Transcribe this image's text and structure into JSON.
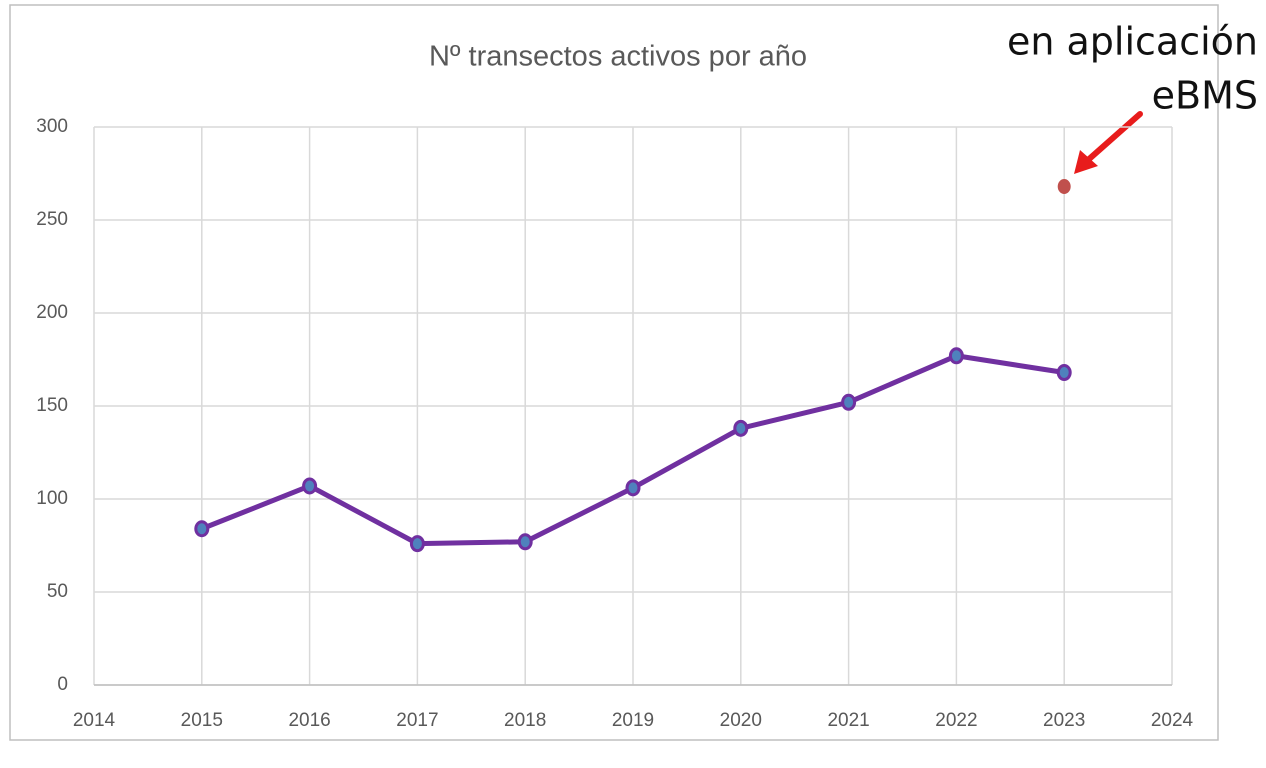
{
  "chart_data": {
    "type": "line",
    "title": "Nº transectos activos por año",
    "annotations": [
      "en aplicación",
      "eBMS"
    ],
    "series": [
      {
        "color": "#7030a0",
        "marker_color": "#4f81bd",
        "line": true,
        "x": [
          2015,
          2016,
          2017,
          2018,
          2019,
          2020,
          2021,
          2022,
          2023
        ],
        "values": [
          84,
          107,
          76,
          77,
          106,
          138,
          152,
          177,
          168
        ]
      },
      {
        "color": "#c0504d",
        "marker_color": "#c0504d",
        "line": false,
        "x": [
          2023
        ],
        "values": [
          268
        ]
      }
    ],
    "xlim": [
      2014,
      2024
    ],
    "xticks": [
      2014,
      2015,
      2016,
      2017,
      2018,
      2019,
      2020,
      2021,
      2022,
      2023,
      2024
    ],
    "ylim": [
      0,
      300
    ],
    "yticks": [
      0,
      50,
      100,
      150,
      200,
      250,
      300
    ],
    "grid": true
  }
}
